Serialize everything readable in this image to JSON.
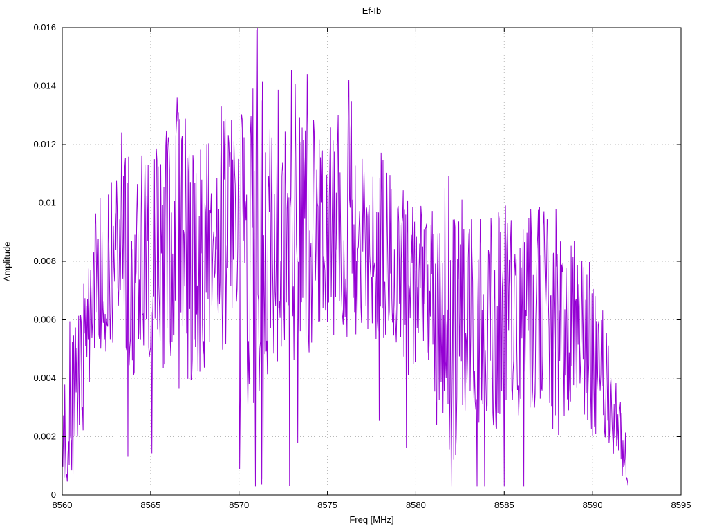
{
  "chart_data": {
    "type": "line",
    "title": "Ef-Ib",
    "xlabel": "Freq [MHz]",
    "ylabel": "Amplitude",
    "xlim": [
      8560,
      8595
    ],
    "ylim": [
      0,
      0.016
    ],
    "xticks": [
      8560,
      8565,
      8570,
      8575,
      8580,
      8585,
      8590,
      8595
    ],
    "xtick_labels": [
      "8560",
      "8565",
      "8570",
      "8575",
      "8580",
      "8585",
      "8590",
      "8595"
    ],
    "yticks": [
      0,
      0.002,
      0.004,
      0.006,
      0.008,
      0.01,
      0.012,
      0.014,
      0.016
    ],
    "ytick_labels": [
      "0",
      "0.002",
      "0.004",
      "0.006",
      "0.008",
      "0.01",
      "0.012",
      "0.014",
      "0.016"
    ],
    "grid": true,
    "grid_style": "dotted",
    "legend_position": "none",
    "line_color": "#9400d3",
    "border_color": "#000000",
    "grid_color": "#b8b8b8",
    "series": [
      {
        "name": "Ef-Ib",
        "style": "noisy-spectrum",
        "x_range": [
          8560,
          8592
        ],
        "points_per_mhz": 28,
        "seed": 1337,
        "envelope": {
          "x": [
            8560.0,
            8560.4,
            8561.0,
            8561.5,
            8562.0,
            8563.0,
            8564.0,
            8565.0,
            8566.5,
            8568.0,
            8569.0,
            8570.0,
            8571.0,
            8572.0,
            8573.0,
            8574.0,
            8575.0,
            8576.0,
            8577.0,
            8578.0,
            8579.0,
            8580.0,
            8581.0,
            8582.0,
            8583.0,
            8584.0,
            8585.0,
            8586.0,
            8587.0,
            8588.0,
            8589.0,
            8590.0,
            8590.7,
            8591.3,
            8592.0
          ],
          "mean": [
            0.0015,
            0.003,
            0.004,
            0.006,
            0.0075,
            0.008,
            0.008,
            0.0082,
            0.0085,
            0.008,
            0.009,
            0.008,
            0.009,
            0.0085,
            0.0088,
            0.009,
            0.0088,
            0.0095,
            0.009,
            0.0085,
            0.0078,
            0.0068,
            0.0065,
            0.006,
            0.0062,
            0.0058,
            0.006,
            0.0058,
            0.0065,
            0.0055,
            0.0058,
            0.005,
            0.004,
            0.0025,
            0.0012
          ],
          "spread": [
            0.0012,
            0.003,
            0.003,
            0.0025,
            0.0025,
            0.0032,
            0.004,
            0.0035,
            0.005,
            0.004,
            0.0042,
            0.005,
            0.006,
            0.0042,
            0.0042,
            0.0042,
            0.0035,
            0.0048,
            0.0035,
            0.0035,
            0.0028,
            0.0035,
            0.0038,
            0.0055,
            0.0038,
            0.0035,
            0.004,
            0.004,
            0.0035,
            0.0035,
            0.003,
            0.003,
            0.002,
            0.0015,
            0.001
          ]
        },
        "notable_points": [
          [
            8560.1,
            0.0006
          ],
          [
            8566.5,
            0.0136
          ],
          [
            8569.0,
            0.0133
          ],
          [
            8570.05,
            0.0009
          ],
          [
            8571.0,
            0.0159
          ],
          [
            8576.2,
            0.0142
          ],
          [
            8582.0,
            0.0003
          ],
          [
            8591.9,
            0.0005
          ]
        ]
      }
    ]
  }
}
